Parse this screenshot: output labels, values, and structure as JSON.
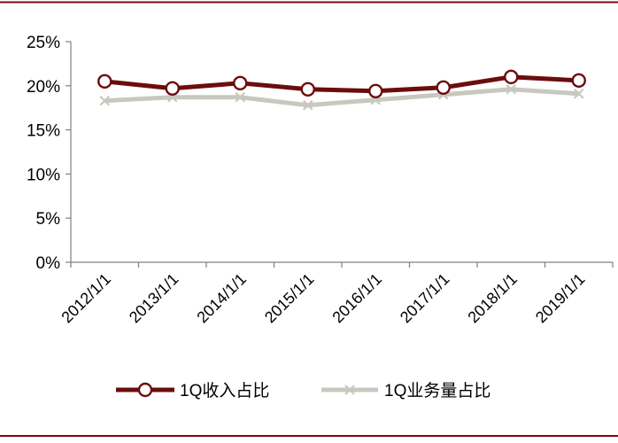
{
  "colors": {
    "frame": "#7a0a10",
    "series_income": "#6b0d0d",
    "series_volume": "#c8c8c0",
    "axis": "#808080"
  },
  "chart_data": {
    "type": "line",
    "title": "",
    "xlabel": "",
    "ylabel": "",
    "x": [
      "2012/1/1",
      "2013/1/1",
      "2014/1/1",
      "2015/1/1",
      "2016/1/1",
      "2017/1/1",
      "2018/1/1",
      "2019/1/1"
    ],
    "ylim": [
      0,
      25
    ],
    "yticks": [
      "0%",
      "5%",
      "10%",
      "15%",
      "20%",
      "25%"
    ],
    "y_tick_values": [
      0,
      5,
      10,
      15,
      20,
      25
    ],
    "grid": false,
    "legend_position": "bottom",
    "series": [
      {
        "name": "1Q收入占比",
        "values": [
          20.5,
          19.7,
          20.3,
          19.6,
          19.4,
          19.8,
          21.0,
          20.6
        ],
        "marker": "circle",
        "color": "#6b0d0d"
      },
      {
        "name": "1Q业务量占比",
        "values": [
          18.3,
          18.7,
          18.7,
          17.8,
          18.4,
          19.0,
          19.6,
          19.1
        ],
        "marker": "x",
        "color": "#c8c8c0"
      }
    ]
  }
}
